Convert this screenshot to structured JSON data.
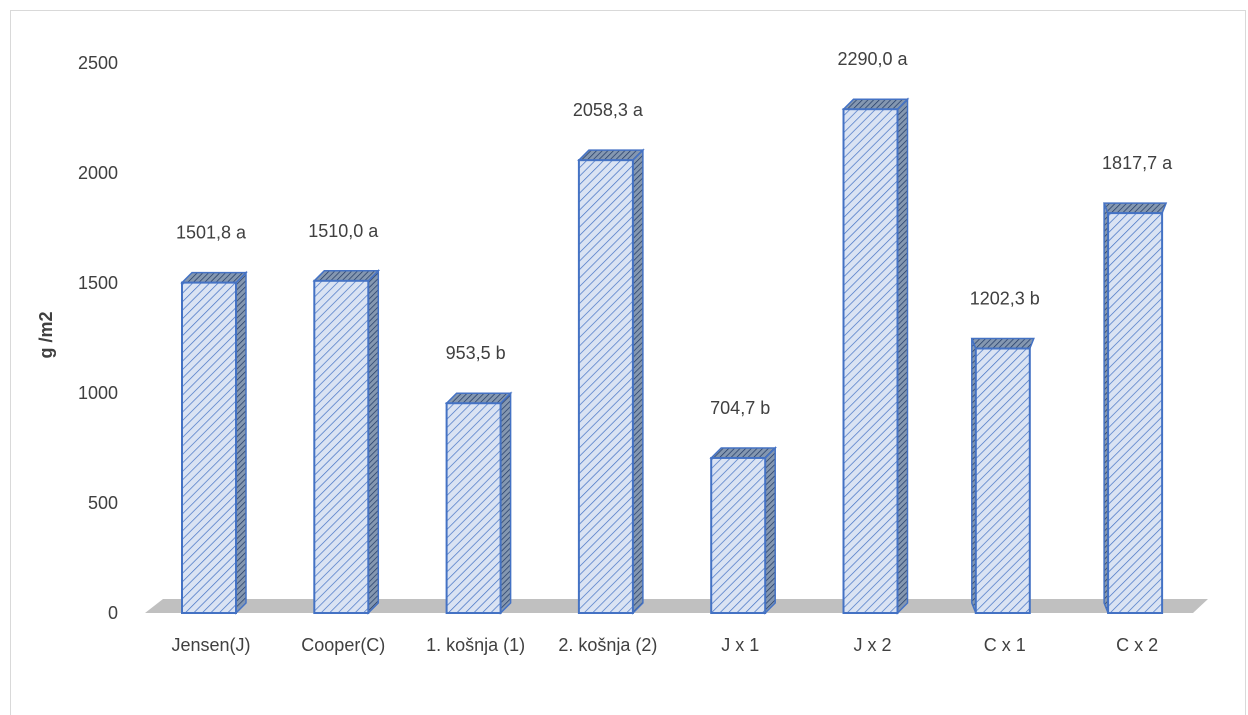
{
  "chart_data": {
    "type": "bar",
    "ylabel": "g /m2",
    "xlabel": "",
    "ylim": [
      0,
      2500
    ],
    "yticks": [
      "0",
      "500",
      "1000",
      "1500",
      "2000",
      "2500"
    ],
    "categories": [
      "Jensen(J)",
      "Cooper(C)",
      "1. košnja (1)",
      "2. košnja (2)",
      "J x 1",
      "J x 2",
      "C x 1",
      "C x 2"
    ],
    "values": [
      1501.8,
      1510.0,
      953.5,
      2058.3,
      704.7,
      2290.0,
      1202.3,
      1817.7
    ],
    "data_labels": [
      "1501,8 a",
      "1510,0 a",
      "953,5 b",
      "2058,3 a",
      "704,7 b",
      "2290,0 a",
      "1202,3 b",
      "1817,7 a"
    ],
    "grid": false,
    "legend": "none",
    "bar_color": "#dae3f3",
    "bar_edge_color": "#4472c4",
    "floor_color": "#c0c0c0"
  }
}
